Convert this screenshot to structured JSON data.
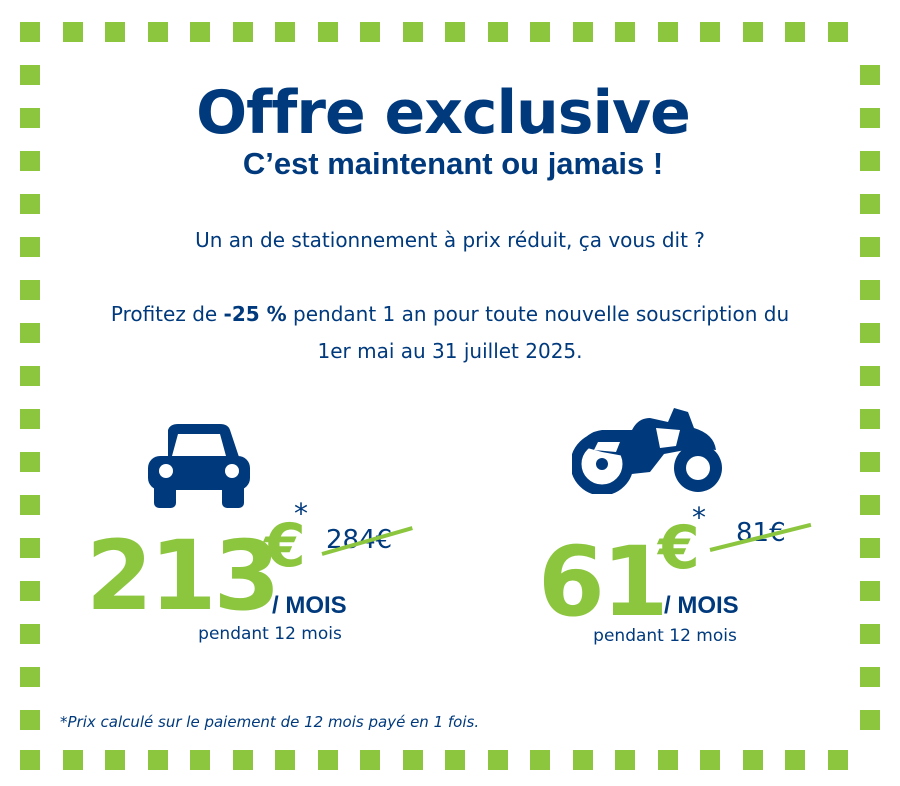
{
  "colors": {
    "brand_blue": "#003a7d",
    "accent_green": "#8cc63f",
    "background": "#ffffff"
  },
  "header": {
    "title": "Offre exclusive",
    "subtitle": "C’est maintenant ou jamais !"
  },
  "intro": {
    "question": "Un an de stationnement à prix réduit, ça vous dit ?",
    "offer_before": "Profitez de ",
    "offer_discount": "-25 %",
    "offer_after": " pendant 1 an pour toute nouvelle souscription du 1er mai au 31 juillet 2025."
  },
  "offers": [
    {
      "vehicle_icon": "car-icon",
      "price": "213",
      "currency": "€",
      "asterisk": "*",
      "old_price": "284€",
      "unit": "/ MOIS",
      "duration": "pendant 12 mois"
    },
    {
      "vehicle_icon": "motorcycle-icon",
      "price": "61",
      "currency": "€",
      "asterisk": "*",
      "old_price": "81€",
      "unit": "/ MOIS",
      "duration": "pendant 12 mois"
    }
  ],
  "footnote": "*Prix calculé sur le paiement de 12 mois payé en 1 fois."
}
